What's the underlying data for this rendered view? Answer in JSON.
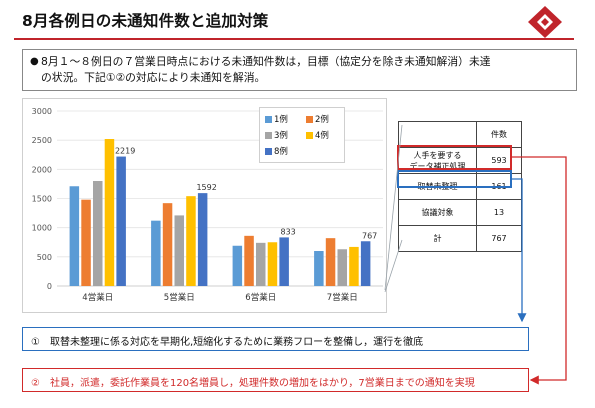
{
  "page": {
    "title": "8月各例日の未通知件数と追加対策",
    "bullet_line1": "8月１～８例日の７営業日時点における未通知件数は，目標（協定分を除き未通知解消）未達",
    "bullet_line2": "の状況。下記①②の対応により未通知を解消。",
    "bullet_mark": "●"
  },
  "colors": {
    "accent": "#c0242b",
    "series": [
      "#5b9bd5",
      "#ed7d31",
      "#a5a5a5",
      "#ffc000",
      "#4472c4"
    ],
    "red_line": "#d12a2a",
    "blue_line": "#2a6fbf"
  },
  "chart_data": {
    "type": "bar",
    "categories": [
      "4営業日",
      "5営業日",
      "6営業日",
      "7営業日"
    ],
    "series": [
      {
        "name": "1例",
        "values": [
          1710,
          1120,
          690,
          600
        ]
      },
      {
        "name": "2例",
        "values": [
          1480,
          1420,
          860,
          820
        ]
      },
      {
        "name": "3例",
        "values": [
          1800,
          1210,
          740,
          630
        ]
      },
      {
        "name": "4例",
        "values": [
          2520,
          1540,
          750,
          670
        ]
      },
      {
        "name": "8例",
        "values": [
          2219,
          1592,
          833,
          767
        ]
      }
    ],
    "data_labels": {
      "8例": [
        "2219",
        "1592",
        "833",
        "767"
      ]
    },
    "y_ticks": [
      "0",
      "500",
      "1000",
      "1500",
      "2000",
      "2500",
      "3000"
    ],
    "ylim": [
      0,
      3000
    ],
    "grid": true,
    "legend": "top-right"
  },
  "count_table": {
    "header": "件数",
    "rows": [
      {
        "label_line1": "人手を要する",
        "label_line2": "データ補正処理",
        "value": "593"
      },
      {
        "label_line1": "取替未整理",
        "label_line2": "",
        "value": "161"
      },
      {
        "label_line1": "協議対象",
        "label_line2": "",
        "value": "13"
      },
      {
        "label_line1": "計",
        "label_line2": "",
        "value": "767"
      }
    ]
  },
  "callouts": {
    "item1": "①　取替未整理に係る対応を早期化,短縮化するために業務フローを整備し，運行を徹底",
    "item2": "②　社員，派遣，委託作業員を120名増員し，処理件数の増加をはかり，7営業日までの通知を実現"
  },
  "icons": {
    "logo": "diamond-logo-icon"
  }
}
